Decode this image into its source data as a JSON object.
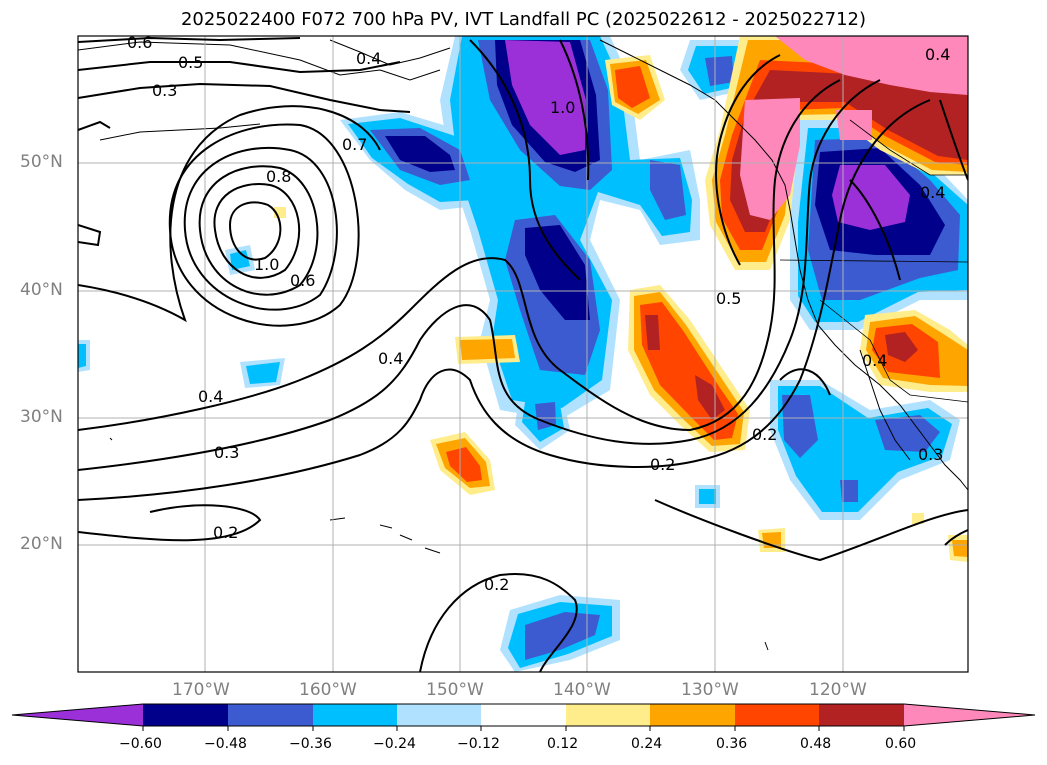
{
  "title": "2025022400 F072 700 hPa PV, IVT Landfall PC (2025022612 - 2025022712)",
  "axes": {
    "lon_labels": [
      "170°W",
      "160°W",
      "150°W",
      "140°W",
      "130°W",
      "120°W"
    ],
    "lat_labels": [
      "50°N",
      "40°N",
      "30°N",
      "20°N"
    ]
  },
  "contour_labels": [
    "0.6",
    "0.5",
    "0.3",
    "0.4",
    "0.7",
    "0.8",
    "1.0",
    "0.6",
    "1.0",
    "0.4",
    "0.5",
    "0.4",
    "0.3",
    "0.2",
    "0.2",
    "0.2",
    "0.2",
    "0.4",
    "0.3",
    "0.4",
    "0.4"
  ],
  "colorbar": {
    "ticks": [
      "−0.60",
      "−0.48",
      "−0.36",
      "−0.24",
      "−0.12",
      "0.12",
      "0.24",
      "0.36",
      "0.48",
      "0.60"
    ],
    "colors": [
      "#9b30d9",
      "#00008b",
      "#3c5bd0",
      "#00bfff",
      "#b0e2ff",
      "#ffffff",
      "#ffec8b",
      "#ffa500",
      "#ff4500",
      "#b22222",
      "#ff88bb"
    ]
  },
  "fill_colors": {
    "purple": "#9b30d9",
    "navy": "#00008b",
    "royal": "#3c5bd0",
    "sky": "#00bfff",
    "pale_blue": "#b0e2ff",
    "yellow": "#ffec8b",
    "orange": "#ffa500",
    "red_orange": "#ff4500",
    "firebrick": "#b22222",
    "pink": "#ff88bb"
  }
}
